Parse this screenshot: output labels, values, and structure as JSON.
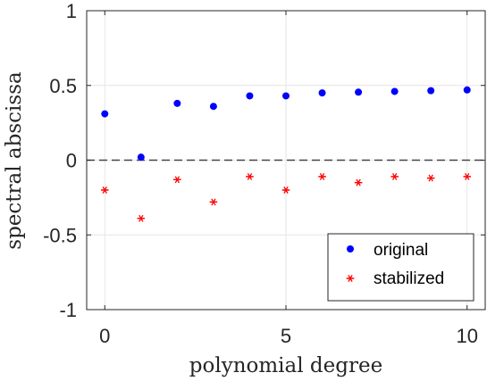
{
  "chart_data": {
    "type": "scatter",
    "xlabel": "polynomial degree",
    "ylabel": "spectral abscissa",
    "xlim": [
      -0.5,
      10.5
    ],
    "ylim": [
      -1,
      1
    ],
    "xticks": [
      0,
      5,
      10
    ],
    "yticks": [
      1,
      0.5,
      0,
      -0.5,
      -1
    ],
    "ytick_labels": [
      "1",
      "0.5",
      "0",
      "-0.5",
      "-1"
    ],
    "grid": true,
    "reference_line": {
      "y": 0,
      "style": "dashed"
    },
    "legend_position": "bottom-right",
    "x": [
      0,
      1,
      2,
      3,
      4,
      5,
      6,
      7,
      8,
      9,
      10
    ],
    "series": [
      {
        "name": "original",
        "marker": "dot",
        "color": "#0000ff",
        "values": [
          0.31,
          0.02,
          0.38,
          0.36,
          0.43,
          0.43,
          0.45,
          0.455,
          0.46,
          0.465,
          0.47
        ]
      },
      {
        "name": "stabilized",
        "marker": "asterisk",
        "color": "#ff0000",
        "values": [
          -0.2,
          -0.39,
          -0.13,
          -0.28,
          -0.11,
          -0.2,
          -0.11,
          -0.15,
          -0.11,
          -0.12,
          -0.11
        ]
      }
    ]
  }
}
